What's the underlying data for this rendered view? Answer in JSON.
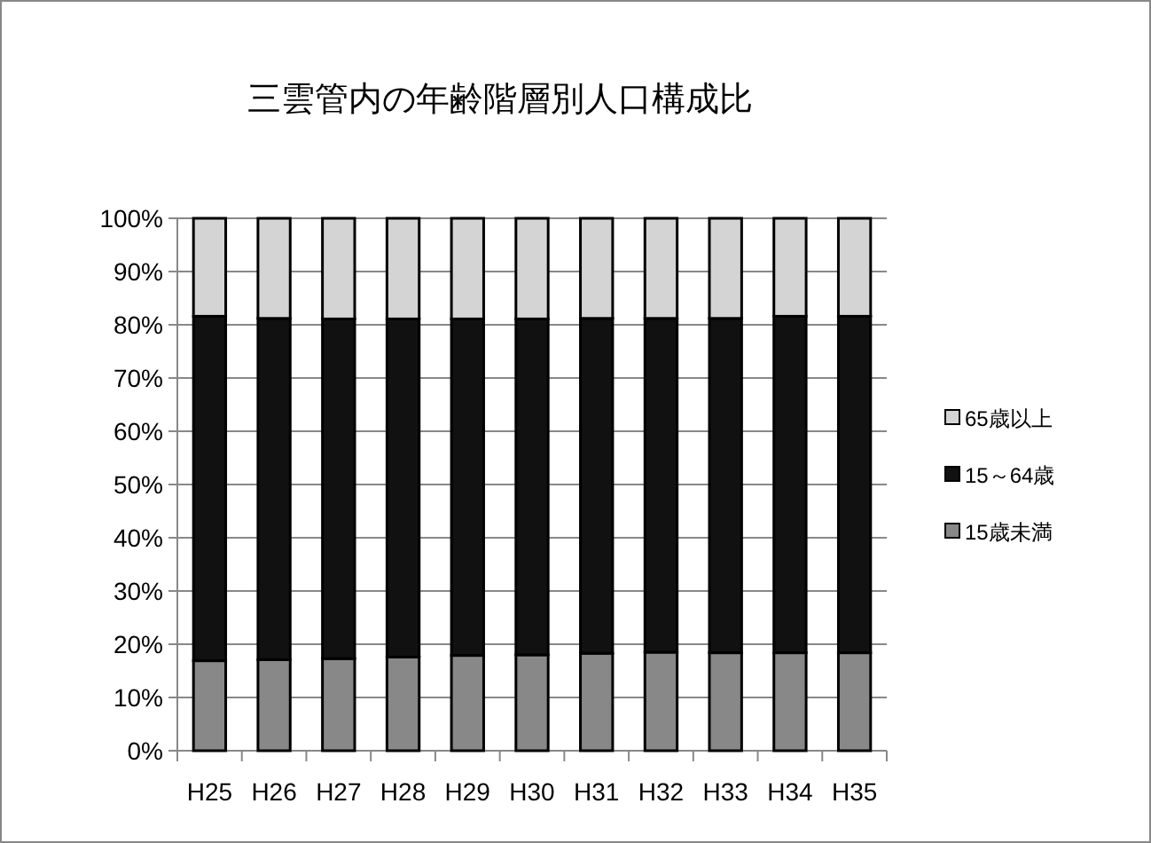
{
  "chart_data": {
    "type": "bar",
    "title": "三雲管内の年齢階層別人口構成比",
    "stacked": true,
    "categories": [
      "H25",
      "H26",
      "H27",
      "H28",
      "H29",
      "H30",
      "H31",
      "H32",
      "H33",
      "H34",
      "H35"
    ],
    "series": [
      {
        "name": "15歳未満",
        "color": "#888888",
        "values": [
          16.9,
          17.1,
          17.3,
          17.6,
          17.9,
          18.0,
          18.3,
          18.5,
          18.4,
          18.4,
          18.4
        ]
      },
      {
        "name": "15～64歳",
        "color": "#111111",
        "values": [
          64.7,
          64.1,
          63.8,
          63.5,
          63.2,
          63.1,
          62.9,
          62.7,
          62.8,
          63.2,
          63.2
        ]
      },
      {
        "name": "65歳以上",
        "color": "#d4d4d4",
        "values": [
          18.4,
          18.8,
          18.9,
          18.9,
          18.9,
          18.9,
          18.8,
          18.8,
          18.8,
          18.4,
          18.4
        ]
      }
    ],
    "ylim": [
      0,
      100
    ],
    "yticks": [
      {
        "value": 0,
        "label": "0%"
      },
      {
        "value": 10,
        "label": "10%"
      },
      {
        "value": 20,
        "label": "20%"
      },
      {
        "value": 30,
        "label": "30%"
      },
      {
        "value": 40,
        "label": "40%"
      },
      {
        "value": 50,
        "label": "50%"
      },
      {
        "value": 60,
        "label": "60%"
      },
      {
        "value": 70,
        "label": "70%"
      },
      {
        "value": 80,
        "label": "80%"
      },
      {
        "value": 90,
        "label": "90%"
      },
      {
        "value": 100,
        "label": "100%"
      }
    ],
    "grid": "y",
    "legend": "right"
  }
}
